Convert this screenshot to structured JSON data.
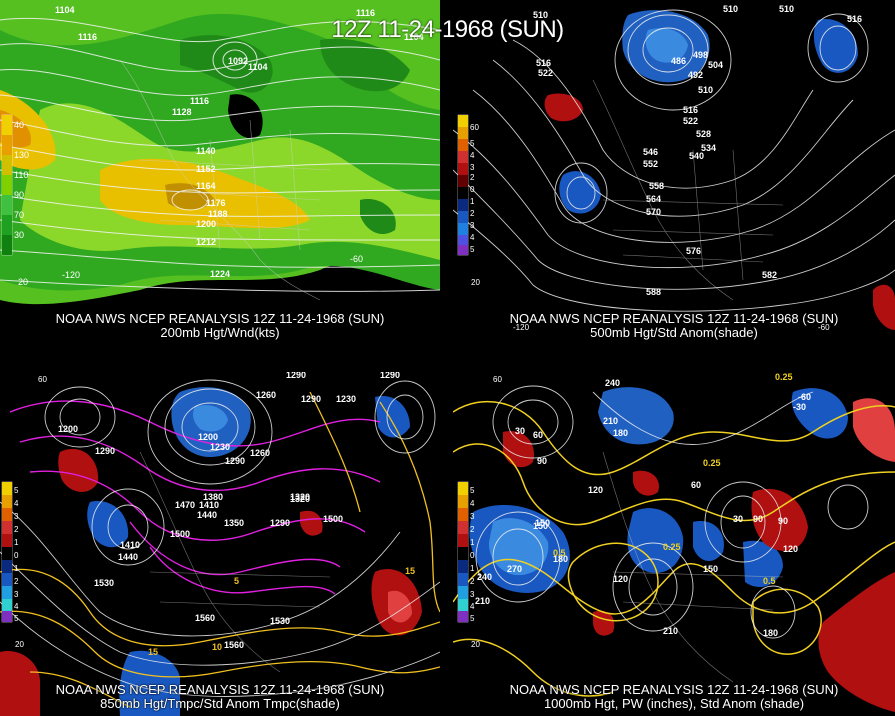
{
  "main_title": "12Z 11-24-1968 (SUN)",
  "panels": [
    {
      "id": "p1",
      "caption_source": "NOAA NWS NCEP REANALYSIS 12Z 11-24-1968 (SUN)",
      "caption_field": "200mb Hgt/Wnd(kts)",
      "legend": [
        "40",
        "130",
        "110",
        "90",
        "70",
        "50",
        "30"
      ],
      "legend_colors": [
        "#f0d000",
        "#e8a000",
        "#d0c000",
        "#80d000",
        "#40c040",
        "#20a020",
        "#108010"
      ],
      "axis_labels": [
        "20",
        "-120",
        "-60"
      ],
      "contour_labels": [
        "1104",
        "1116",
        "1092",
        "1104",
        "1116",
        "1128",
        "1140",
        "1152",
        "1164",
        "1176",
        "1188",
        "1200",
        "1212",
        "1224",
        "1116",
        "1104"
      ]
    },
    {
      "id": "p2",
      "caption_source": "NOAA NWS NCEP REANALYSIS 12Z 11-24-1968 (SUN)",
      "caption_field": "500mb Hgt/Std Anom(shade)",
      "legend": [
        "60",
        "5",
        "4",
        "3",
        "2",
        "1",
        "0",
        "1",
        "2",
        "3",
        "4",
        "5"
      ],
      "legend_colors": [
        "#f0d000",
        "#e8a000",
        "#e06000",
        "#d03030",
        "#b01010",
        "#600000",
        "#000000",
        "#0a2a80",
        "#1858c0",
        "#2080e0",
        "#5050e0",
        "#8030c0"
      ],
      "axis_labels": [
        "20",
        "-120",
        "-60"
      ],
      "contour_labels": [
        "510",
        "516",
        "522",
        "510",
        "486",
        "492",
        "498",
        "504",
        "510",
        "516",
        "522",
        "528",
        "534",
        "540",
        "546",
        "552",
        "558",
        "564",
        "570",
        "576",
        "582",
        "588",
        "510",
        "516"
      ]
    },
    {
      "id": "p3",
      "caption_source": "NOAA NWS NCEP REANALYSIS 12Z 11-24-1968 (SUN)",
      "caption_field": "850mb Hgt/Tmpc/Std Anom Tmpc(shade)",
      "legend": [
        "5",
        "4",
        "3",
        "2",
        "1",
        "0",
        "1",
        "2",
        "3",
        "4",
        "5"
      ],
      "legend_colors": [
        "#f0d000",
        "#e8a000",
        "#e06000",
        "#d03030",
        "#b01010",
        "#000000",
        "#0a2a80",
        "#1858c0",
        "#20a0e0",
        "#30d0d0",
        "#8030c0"
      ],
      "axis_labels": [
        "60",
        "20"
      ],
      "contour_labels": [
        "1290",
        "1260",
        "1290",
        "1200",
        "1230",
        "1260",
        "1290",
        "1380",
        "1410",
        "1440",
        "1470",
        "1500",
        "1350",
        "1320",
        "1290",
        "1410",
        "1440",
        "1530",
        "1560",
        "1560",
        "1530",
        "1500",
        "15",
        "10",
        "15",
        "5",
        "1320",
        "1290",
        "1290",
        "1200",
        "1230"
      ]
    },
    {
      "id": "p4",
      "caption_source": "NOAA NWS NCEP REANALYSIS 12Z 11-24-1968 (SUN)",
      "caption_field": "1000mb Hgt, PW (inches), Std Anom (shade)",
      "legend": [
        "5",
        "4",
        "3",
        "2",
        "1",
        "0",
        "1",
        "2",
        "3",
        "4",
        "5"
      ],
      "legend_colors": [
        "#f0d000",
        "#e8a000",
        "#e06000",
        "#d03030",
        "#b01010",
        "#000000",
        "#0a2a80",
        "#1858c0",
        "#20a0e0",
        "#30d0d0",
        "#8030c0"
      ],
      "axis_labels": [
        "60",
        "20"
      ],
      "contour_labels": [
        "240",
        "210",
        "180",
        "30",
        "60",
        "90",
        "120",
        "150",
        "180",
        "210",
        "240",
        "270",
        "0.25",
        "0.5",
        "0.25",
        "0.5",
        "0.25",
        "150",
        "120",
        "90",
        "60",
        "30",
        "-30",
        "-60",
        "210",
        "180",
        "150",
        "120",
        "90"
      ]
    }
  ]
}
